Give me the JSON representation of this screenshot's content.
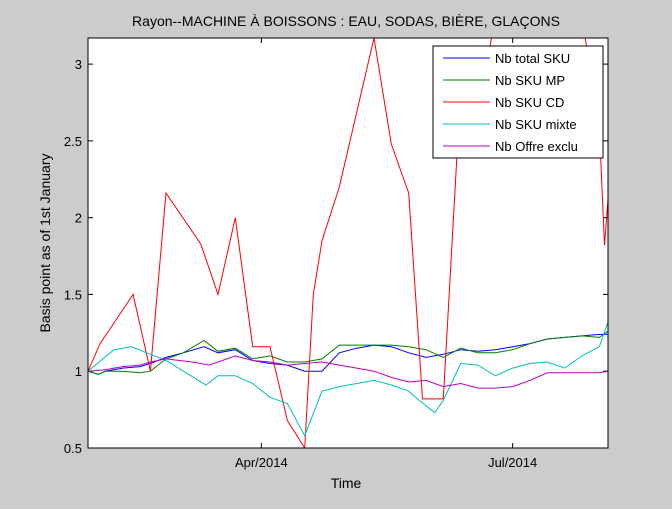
{
  "chart_data": {
    "type": "line",
    "title": "Rayon--MACHINE À BOISSONS : EAU, SODAS, BIÈRE, GLAÇONS",
    "xlabel": "Time",
    "ylabel": "Basis point as of 1st January",
    "xlim": [
      0,
      30
    ],
    "ylim": [
      0.5,
      3.17
    ],
    "grid": false,
    "legend_position": "top-right",
    "xticks": [
      {
        "x": 10,
        "label": "Apr/2014"
      },
      {
        "x": 24.5,
        "label": "Jul/2014"
      }
    ],
    "yticks": [
      {
        "y": 0.5,
        "label": "0.5"
      },
      {
        "y": 1,
        "label": "1"
      },
      {
        "y": 1.5,
        "label": "1.5"
      },
      {
        "y": 2,
        "label": "2"
      },
      {
        "y": 2.5,
        "label": "2.5"
      },
      {
        "y": 3,
        "label": "3"
      }
    ],
    "series": [
      {
        "name": "Nb total SKU",
        "color": "#0000ff",
        "x": [
          0,
          0.6,
          1,
          2,
          3,
          3.6,
          4.5,
          5.5,
          6.7,
          7.5,
          8.5,
          9.5,
          10.5,
          11.5,
          12.5,
          13.5,
          14.5,
          15.5,
          16.5,
          17.5,
          18.5,
          19.5,
          20.5,
          21.5,
          22.5,
          23.5,
          24.5,
          25.5,
          26.5,
          27.5,
          28.5,
          29.5,
          30
        ],
        "y": [
          1.0,
          0.98,
          1.0,
          1.02,
          1.03,
          1.05,
          1.09,
          1.12,
          1.16,
          1.12,
          1.14,
          1.07,
          1.05,
          1.04,
          1.0,
          1.0,
          1.12,
          1.15,
          1.17,
          1.16,
          1.12,
          1.09,
          1.11,
          1.14,
          1.13,
          1.14,
          1.16,
          1.18,
          1.21,
          1.22,
          1.23,
          1.24,
          1.24
        ]
      },
      {
        "name": "Nb SKU MP",
        "color": "#007f00",
        "x": [
          0,
          0.6,
          1,
          2,
          3,
          3.6,
          4.5,
          5.5,
          6.7,
          7.5,
          8.5,
          9.5,
          10.5,
          11.5,
          12.5,
          13.5,
          14.5,
          15.5,
          16.5,
          17.5,
          18.5,
          19.5,
          20.5,
          21.5,
          22.5,
          23.5,
          24.5,
          25.5,
          26.5,
          27.5,
          28.5,
          29.5,
          30
        ],
        "y": [
          1.0,
          0.98,
          1.0,
          1.0,
          0.99,
          1.0,
          1.08,
          1.12,
          1.2,
          1.13,
          1.15,
          1.08,
          1.1,
          1.06,
          1.06,
          1.08,
          1.17,
          1.17,
          1.17,
          1.17,
          1.16,
          1.14,
          1.09,
          1.15,
          1.12,
          1.12,
          1.14,
          1.18,
          1.21,
          1.22,
          1.23,
          1.22,
          1.26
        ]
      },
      {
        "name": "Nb SKU CD",
        "color": "#ff0000",
        "x": [
          0,
          0.7,
          2.6,
          3.6,
          4.5,
          6.5,
          7.5,
          8.5,
          9.5,
          10.5,
          11.5,
          12.5,
          13,
          13.5,
          14.5,
          16.5,
          17.5,
          18.5,
          19.3,
          20.5,
          21.5,
          22.5,
          23.5,
          24.5,
          25.5,
          26.5,
          27.5,
          28.5,
          29.5,
          29.8,
          30
        ],
        "y": [
          1.0,
          1.18,
          1.5,
          1.0,
          2.16,
          1.83,
          1.5,
          2.0,
          1.16,
          1.16,
          0.68,
          0.5,
          1.5,
          1.85,
          2.2,
          3.17,
          2.48,
          2.16,
          0.82,
          0.82,
          2.84,
          2.7,
          3.3,
          3.3,
          3.3,
          3.3,
          3.3,
          3.3,
          2.6,
          1.82,
          2.12
        ]
      },
      {
        "name": "Nb SKU mixte",
        "color": "#00bfbf",
        "x": [
          0,
          1.5,
          2.5,
          3.6,
          4.5,
          6.8,
          7.5,
          8.5,
          9.5,
          10.5,
          11.5,
          12.5,
          13.5,
          14.5,
          16.5,
          17.5,
          18.5,
          19,
          20,
          20.5,
          21.5,
          22.5,
          23.5,
          24.5,
          25.5,
          26.5,
          27.5,
          28.5,
          29.5,
          30
        ],
        "y": [
          1.0,
          1.14,
          1.16,
          1.11,
          1.07,
          0.91,
          0.97,
          0.97,
          0.92,
          0.83,
          0.79,
          0.58,
          0.87,
          0.9,
          0.94,
          0.91,
          0.87,
          0.82,
          0.73,
          0.81,
          1.05,
          1.04,
          0.97,
          1.02,
          1.05,
          1.06,
          1.02,
          1.1,
          1.16,
          1.32
        ]
      },
      {
        "name": "Nb Offre exclu",
        "color": "#bf00bf",
        "x": [
          0,
          1,
          2,
          3,
          3.6,
          4.5,
          6,
          7,
          8.5,
          9.5,
          10.5,
          11.5,
          12.5,
          13.5,
          14.5,
          15.5,
          16.5,
          17.5,
          18.5,
          19.5,
          20.5,
          21.5,
          22.5,
          23.5,
          24.5,
          25.5,
          26.5,
          27.5,
          28.5,
          29.5,
          30
        ],
        "y": [
          1.0,
          1.01,
          1.03,
          1.04,
          1.06,
          1.08,
          1.06,
          1.04,
          1.1,
          1.07,
          1.06,
          1.04,
          1.05,
          1.06,
          1.04,
          1.02,
          1.0,
          0.96,
          0.93,
          0.94,
          0.9,
          0.92,
          0.89,
          0.89,
          0.9,
          0.94,
          0.99,
          0.99,
          0.99,
          0.99,
          1.0
        ]
      }
    ]
  }
}
